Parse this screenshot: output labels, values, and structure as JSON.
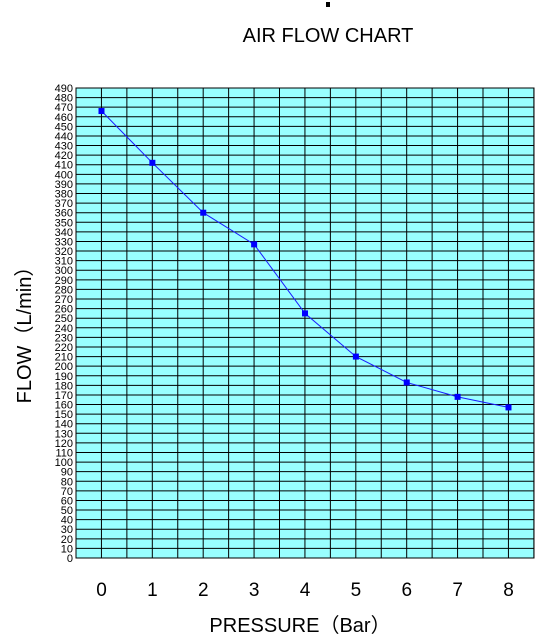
{
  "chart_data": {
    "type": "line",
    "title": "AIR FLOW CHART",
    "xlabel": "PRESSURE（Bar）",
    "ylabel": "FLOW（L/min）",
    "x": [
      0,
      1,
      2,
      3,
      4,
      5,
      6,
      7,
      8
    ],
    "series": [
      {
        "values": [
          466,
          412,
          360,
          327,
          255,
          210,
          183,
          168,
          157
        ]
      }
    ],
    "xlim": [
      0,
      8
    ],
    "ylim": [
      0,
      490
    ],
    "x_ticks": [
      "0",
      "1",
      "2",
      "3",
      "4",
      "5",
      "6",
      "7",
      "8"
    ],
    "y_ticks": [
      "0",
      "10",
      "20",
      "30",
      "40",
      "50",
      "60",
      "70",
      "80",
      "90",
      "100",
      "110",
      "120",
      "130",
      "140",
      "150",
      "160",
      "170",
      "180",
      "190",
      "200",
      "210",
      "220",
      "230",
      "240",
      "250",
      "260",
      "270",
      "280",
      "290",
      "300",
      "310",
      "320",
      "330",
      "340",
      "350",
      "360",
      "370",
      "380",
      "390",
      "400",
      "410",
      "420",
      "430",
      "440",
      "450",
      "460",
      "470",
      "480",
      "490"
    ],
    "grid": true,
    "plot_background": "#99ffff",
    "grid_color": "#000000",
    "line_color": "#1a1aff",
    "marker_color": "#0000ff"
  }
}
